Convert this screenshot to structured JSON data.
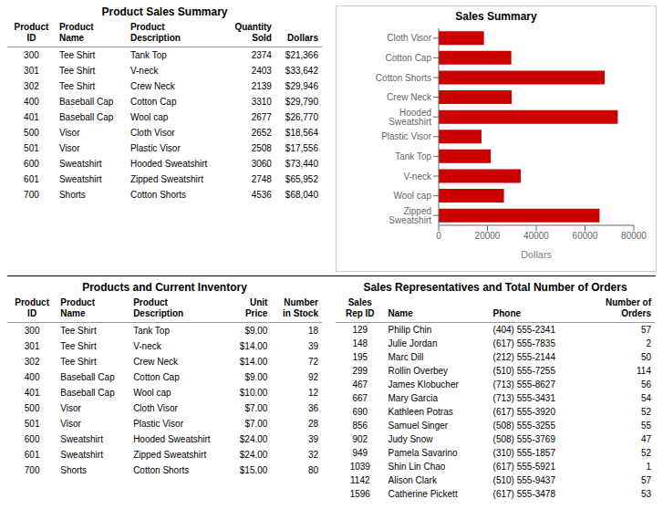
{
  "chart_data": {
    "type": "bar",
    "orientation": "horizontal",
    "title": "Sales Summary",
    "x_label": "Dollars",
    "categories": [
      "Zipped Sweatshirt",
      "Wool cap",
      "V-neck",
      "Tank Top",
      "Plastic Visor",
      "Hooded Sweatshirt",
      "Crew Neck",
      "Cotton Shorts",
      "Cotton Cap",
      "Cloth Visor"
    ],
    "values": [
      65952,
      26770,
      33642,
      21366,
      17556,
      73440,
      29946,
      68040,
      29790,
      18564
    ],
    "color": "#cc0000",
    "xlim": [
      0,
      80000
    ],
    "xticks": [
      0,
      20000,
      40000,
      60000,
      80000
    ],
    "grid": false
  },
  "tables": [
    {
      "title": "Product Sales Summary",
      "columns": [
        "Product\nID",
        "Product\nName",
        "Product\nDescription",
        "Quantity\nSold",
        "Dollars"
      ],
      "rows": [
        [
          300,
          "Tee Shirt",
          "Tank Top",
          2374,
          "$21,366"
        ],
        [
          301,
          "Tee Shirt",
          "V-neck",
          2403,
          "$33,642"
        ],
        [
          302,
          "Tee Shirt",
          "Crew Neck",
          2139,
          "$29,946"
        ],
        [
          400,
          "Baseball Cap",
          "Cotton Cap",
          3310,
          "$29,790"
        ],
        [
          401,
          "Baseball Cap",
          "Wool cap",
          2677,
          "$26,770"
        ],
        [
          500,
          "Visor",
          "Cloth Visor",
          2652,
          "$18,564"
        ],
        [
          501,
          "Visor",
          "Plastic Visor",
          2508,
          "$17,556"
        ],
        [
          600,
          "Sweatshirt",
          "Hooded Sweatshirt",
          3060,
          "$73,440"
        ],
        [
          601,
          "Sweatshirt",
          "Zipped Sweatshirt",
          2748,
          "$65,952"
        ],
        [
          700,
          "Shorts",
          "Cotton Shorts",
          4536,
          "$68,040"
        ]
      ]
    },
    {
      "title": "Products and Current Inventory",
      "columns": [
        "Product\nID",
        "Product\nName",
        "Product\nDescription",
        "Unit\nPrice",
        "Number\nin Stock"
      ],
      "rows": [
        [
          300,
          "Tee Shirt",
          "Tank Top",
          "$9.00",
          18
        ],
        [
          301,
          "Tee Shirt",
          "V-neck",
          "$14.00",
          39
        ],
        [
          302,
          "Tee Shirt",
          "Crew Neck",
          "$14.00",
          72
        ],
        [
          400,
          "Baseball Cap",
          "Cotton Cap",
          "$9.00",
          92
        ],
        [
          401,
          "Baseball Cap",
          "Wool cap",
          "$10.00",
          12
        ],
        [
          500,
          "Visor",
          "Cloth Visor",
          "$7.00",
          36
        ],
        [
          501,
          "Visor",
          "Plastic Visor",
          "$7.00",
          28
        ],
        [
          600,
          "Sweatshirt",
          "Hooded Sweatshirt",
          "$24.00",
          39
        ],
        [
          601,
          "Sweatshirt",
          "Zipped Sweatshirt",
          "$24.00",
          32
        ],
        [
          700,
          "Shorts",
          "Cotton Shorts",
          "$15.00",
          80
        ]
      ]
    },
    {
      "title": "Sales Representatives and Total Number of Orders",
      "columns": [
        "Sales\nRep ID",
        "Name",
        "Phone",
        "Number of\nOrders"
      ],
      "rows": [
        [
          129,
          "Philip Chin",
          "(404) 555-2341",
          57
        ],
        [
          148,
          "Julie Jordan",
          "(617) 555-7835",
          2
        ],
        [
          195,
          "Marc Dill",
          "(212) 555-2144",
          50
        ],
        [
          299,
          "Rollin Overbey",
          "(510) 555-7255",
          114
        ],
        [
          467,
          "James Klobucher",
          "(713) 555-8627",
          56
        ],
        [
          667,
          "Mary Garcia",
          "(713) 555-3431",
          54
        ],
        [
          690,
          "Kathleen Potras",
          "(617) 555-3920",
          52
        ],
        [
          856,
          "Samuel Singer",
          "(508) 555-3255",
          55
        ],
        [
          902,
          "Judy Snow",
          "(508) 555-3769",
          47
        ],
        [
          949,
          "Pamela Savarino",
          "(310) 555-1857",
          52
        ],
        [
          1039,
          "Shin Lin Chao",
          "(617) 555-5921",
          1
        ],
        [
          1142,
          "Alison Clark",
          "(510) 555-9437",
          57
        ],
        [
          1596,
          "Catherine Pickett",
          "(617) 555-3478",
          53
        ]
      ]
    }
  ]
}
